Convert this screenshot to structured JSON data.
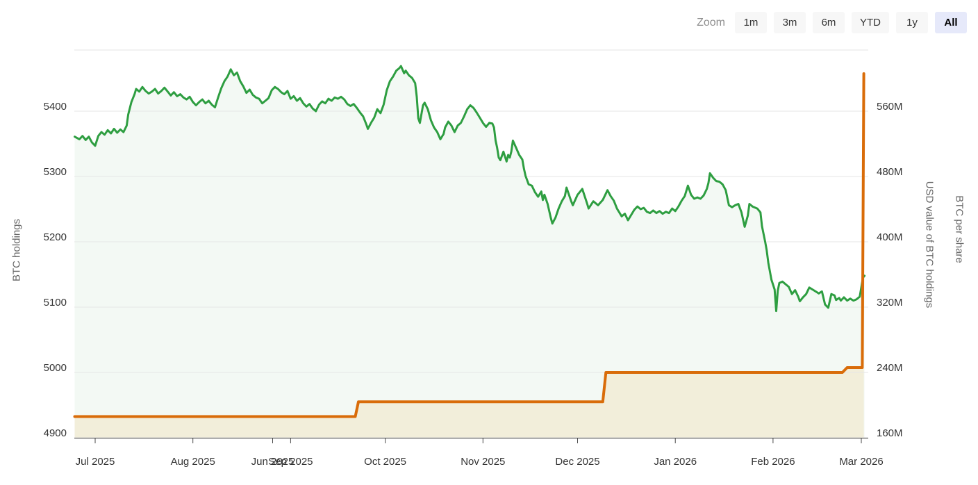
{
  "toolbar": {
    "zoom_label": "Zoom",
    "buttons": [
      {
        "id": "1m",
        "label": "1m",
        "selected": false
      },
      {
        "id": "3m",
        "label": "3m",
        "selected": false
      },
      {
        "id": "6m",
        "label": "6m",
        "selected": false
      },
      {
        "id": "ytd",
        "label": "YTD",
        "selected": false
      },
      {
        "id": "1y",
        "label": "1y",
        "selected": false
      },
      {
        "id": "all",
        "label": "All",
        "selected": true
      }
    ]
  },
  "chart_data": {
    "type": "line",
    "title": "",
    "legend": "none",
    "grid": true,
    "background": "#ffffff",
    "x_unit": "days since 2025-07-01",
    "x_range": [
      -6.6,
      245.2
    ],
    "x_ticks": [
      {
        "day": 0,
        "label": "Jul 2025"
      },
      {
        "day": 31,
        "label": "Aug 2025"
      },
      {
        "day": 56.3,
        "label": "Jun 2025"
      },
      {
        "day": 62,
        "label": "Sep 2025"
      },
      {
        "day": 92,
        "label": "Oct 2025"
      },
      {
        "day": 123,
        "label": "Nov 2025"
      },
      {
        "day": 153,
        "label": "Dec 2025"
      },
      {
        "day": 184,
        "label": "Jan 2026"
      },
      {
        "day": 215,
        "label": "Feb 2026"
      },
      {
        "day": 243,
        "label": "Mar 2026"
      }
    ],
    "axes": {
      "left": {
        "title": "BTC holdings",
        "tick_values": [
          4900,
          5000,
          5100,
          5200,
          5300,
          5400
        ],
        "tick_labels": [
          "4900",
          "5000",
          "5100",
          "5200",
          "5300",
          "5400"
        ],
        "units_per_gridline": 100
      },
      "right": {
        "title": "USD value of BTC holdings",
        "tick_values": [
          160,
          240,
          320,
          400,
          480,
          560
        ],
        "tick_labels": [
          "160M",
          "240M",
          "320M",
          "400M",
          "480M",
          "560M"
        ],
        "units_per_gridline": 80
      },
      "far_right": {
        "title": "BTC per share",
        "tick_labels": []
      }
    },
    "series": [
      {
        "id": "green",
        "name": "BTC holdings",
        "axis": "left",
        "color": "#2e9e41",
        "fill": "rgba(46,158,65,0.06)",
        "width": 3,
        "points": [
          [
            -6.5,
            5361
          ],
          [
            -5,
            5357
          ],
          [
            -4,
            5362
          ],
          [
            -3,
            5356
          ],
          [
            -2,
            5361
          ],
          [
            -1,
            5352
          ],
          [
            0,
            5347
          ],
          [
            1,
            5362
          ],
          [
            2,
            5368
          ],
          [
            3,
            5364
          ],
          [
            4,
            5371
          ],
          [
            5,
            5366
          ],
          [
            6,
            5373
          ],
          [
            7,
            5367
          ],
          [
            8,
            5372
          ],
          [
            9,
            5368
          ],
          [
            10,
            5378
          ],
          [
            10.5,
            5395
          ],
          [
            11.5,
            5414
          ],
          [
            12.5,
            5426
          ],
          [
            13,
            5434
          ],
          [
            14,
            5430
          ],
          [
            15,
            5437
          ],
          [
            16,
            5431
          ],
          [
            17,
            5427
          ],
          [
            18,
            5430
          ],
          [
            19,
            5434
          ],
          [
            20,
            5427
          ],
          [
            21,
            5431
          ],
          [
            22,
            5436
          ],
          [
            23,
            5430
          ],
          [
            24,
            5424
          ],
          [
            25,
            5429
          ],
          [
            26,
            5423
          ],
          [
            27,
            5426
          ],
          [
            28,
            5421
          ],
          [
            29,
            5418
          ],
          [
            30,
            5422
          ],
          [
            31,
            5414
          ],
          [
            32,
            5409
          ],
          [
            33,
            5414
          ],
          [
            34,
            5418
          ],
          [
            35,
            5412
          ],
          [
            36,
            5416
          ],
          [
            37,
            5410
          ],
          [
            38,
            5406
          ],
          [
            39,
            5421
          ],
          [
            40,
            5435
          ],
          [
            41,
            5446
          ],
          [
            42,
            5453
          ],
          [
            43,
            5464
          ],
          [
            44,
            5455
          ],
          [
            45,
            5459
          ],
          [
            46,
            5446
          ],
          [
            47,
            5438
          ],
          [
            48,
            5428
          ],
          [
            49,
            5433
          ],
          [
            50,
            5425
          ],
          [
            51,
            5421
          ],
          [
            52,
            5419
          ],
          [
            53,
            5412
          ],
          [
            54,
            5416
          ],
          [
            55,
            5420
          ],
          [
            56,
            5432
          ],
          [
            57,
            5437
          ],
          [
            58,
            5434
          ],
          [
            59,
            5429
          ],
          [
            60,
            5426
          ],
          [
            61,
            5431
          ],
          [
            62,
            5419
          ],
          [
            63,
            5423
          ],
          [
            64,
            5416
          ],
          [
            65,
            5420
          ],
          [
            66,
            5412
          ],
          [
            67,
            5407
          ],
          [
            68,
            5411
          ],
          [
            69,
            5404
          ],
          [
            70,
            5400
          ],
          [
            71,
            5410
          ],
          [
            72,
            5415
          ],
          [
            73,
            5412
          ],
          [
            74,
            5419
          ],
          [
            75,
            5416
          ],
          [
            76,
            5421
          ],
          [
            77,
            5419
          ],
          [
            78,
            5422
          ],
          [
            79,
            5418
          ],
          [
            80,
            5411
          ],
          [
            81,
            5408
          ],
          [
            82,
            5411
          ],
          [
            83,
            5405
          ],
          [
            84,
            5398
          ],
          [
            85,
            5392
          ],
          [
            86,
            5380
          ],
          [
            86.5,
            5373
          ],
          [
            87.5,
            5382
          ],
          [
            88.5,
            5390
          ],
          [
            89.5,
            5403
          ],
          [
            90.5,
            5397
          ],
          [
            91.5,
            5410
          ],
          [
            92.5,
            5432
          ],
          [
            93.5,
            5446
          ],
          [
            94.5,
            5453
          ],
          [
            95.5,
            5462
          ],
          [
            96.5,
            5466
          ],
          [
            97,
            5469
          ],
          [
            98,
            5458
          ],
          [
            98.5,
            5462
          ],
          [
            99.5,
            5455
          ],
          [
            100.5,
            5451
          ],
          [
            101.5,
            5443
          ],
          [
            102,
            5422
          ],
          [
            102.5,
            5389
          ],
          [
            103,
            5382
          ],
          [
            104,
            5409
          ],
          [
            104.5,
            5413
          ],
          [
            105.5,
            5403
          ],
          [
            106.5,
            5386
          ],
          [
            107.5,
            5375
          ],
          [
            108.5,
            5368
          ],
          [
            109.5,
            5357
          ],
          [
            110.5,
            5365
          ],
          [
            111,
            5375
          ],
          [
            112,
            5384
          ],
          [
            113,
            5378
          ],
          [
            114,
            5368
          ],
          [
            115,
            5378
          ],
          [
            116,
            5382
          ],
          [
            117,
            5392
          ],
          [
            118,
            5403
          ],
          [
            119,
            5409
          ],
          [
            120,
            5405
          ],
          [
            121,
            5398
          ],
          [
            122,
            5390
          ],
          [
            123,
            5382
          ],
          [
            124,
            5376
          ],
          [
            125,
            5382
          ],
          [
            126,
            5381
          ],
          [
            126.5,
            5375
          ],
          [
            127,
            5355
          ],
          [
            127.5,
            5344
          ],
          [
            128,
            5329
          ],
          [
            128.5,
            5325
          ],
          [
            129.5,
            5338
          ],
          [
            130.5,
            5323
          ],
          [
            131,
            5333
          ],
          [
            131.5,
            5329
          ],
          [
            132,
            5338
          ],
          [
            132.5,
            5355
          ],
          [
            133.5,
            5344
          ],
          [
            134.5,
            5333
          ],
          [
            135.5,
            5326
          ],
          [
            136,
            5312
          ],
          [
            136.5,
            5301
          ],
          [
            137.5,
            5288
          ],
          [
            138.5,
            5286
          ],
          [
            139.5,
            5276
          ],
          [
            140.5,
            5269
          ],
          [
            141.5,
            5277
          ],
          [
            142,
            5264
          ],
          [
            142.5,
            5272
          ],
          [
            143.5,
            5258
          ],
          [
            144.5,
            5237
          ],
          [
            145,
            5228
          ],
          [
            146,
            5237
          ],
          [
            147,
            5251
          ],
          [
            148,
            5262
          ],
          [
            149,
            5270
          ],
          [
            149.5,
            5283
          ],
          [
            151,
            5262
          ],
          [
            151.5,
            5256
          ],
          [
            153,
            5272
          ],
          [
            154.5,
            5281
          ],
          [
            156,
            5259
          ],
          [
            156.5,
            5251
          ],
          [
            158,
            5262
          ],
          [
            159.5,
            5256
          ],
          [
            161,
            5264
          ],
          [
            162.5,
            5279
          ],
          [
            163.5,
            5270
          ],
          [
            164.5,
            5263
          ],
          [
            165.5,
            5251
          ],
          [
            167,
            5239
          ],
          [
            168,
            5243
          ],
          [
            169,
            5233
          ],
          [
            170,
            5241
          ],
          [
            171,
            5249
          ],
          [
            172,
            5254
          ],
          [
            173,
            5250
          ],
          [
            174,
            5252
          ],
          [
            175,
            5246
          ],
          [
            176,
            5244
          ],
          [
            177,
            5248
          ],
          [
            178,
            5244
          ],
          [
            179,
            5247
          ],
          [
            180,
            5243
          ],
          [
            181,
            5246
          ],
          [
            182,
            5244
          ],
          [
            183,
            5251
          ],
          [
            184,
            5247
          ],
          [
            185,
            5254
          ],
          [
            186,
            5263
          ],
          [
            187,
            5270
          ],
          [
            188,
            5286
          ],
          [
            189,
            5272
          ],
          [
            190,
            5266
          ],
          [
            191,
            5268
          ],
          [
            192,
            5266
          ],
          [
            193,
            5271
          ],
          [
            194,
            5281
          ],
          [
            194.5,
            5290
          ],
          [
            195,
            5305
          ],
          [
            196,
            5298
          ],
          [
            197,
            5293
          ],
          [
            198,
            5292
          ],
          [
            199,
            5288
          ],
          [
            200,
            5279
          ],
          [
            201,
            5256
          ],
          [
            202,
            5253
          ],
          [
            203,
            5256
          ],
          [
            204,
            5258
          ],
          [
            205,
            5245
          ],
          [
            206,
            5223
          ],
          [
            207,
            5240
          ],
          [
            207.5,
            5258
          ],
          [
            208.5,
            5254
          ],
          [
            210,
            5251
          ],
          [
            211,
            5245
          ],
          [
            211.5,
            5224
          ],
          [
            212.5,
            5200
          ],
          [
            213,
            5187
          ],
          [
            213.5,
            5168
          ],
          [
            214.5,
            5142
          ],
          [
            215.5,
            5127
          ],
          [
            216,
            5094
          ],
          [
            216.5,
            5125
          ],
          [
            217,
            5137
          ],
          [
            218,
            5139
          ],
          [
            219,
            5135
          ],
          [
            220,
            5131
          ],
          [
            221,
            5120
          ],
          [
            222,
            5126
          ],
          [
            223,
            5116
          ],
          [
            223.5,
            5109
          ],
          [
            224.5,
            5115
          ],
          [
            225.5,
            5120
          ],
          [
            226.5,
            5130
          ],
          [
            227.5,
            5127
          ],
          [
            228.5,
            5124
          ],
          [
            229.5,
            5121
          ],
          [
            230.5,
            5124
          ],
          [
            231.5,
            5104
          ],
          [
            232.5,
            5099
          ],
          [
            233.5,
            5120
          ],
          [
            234.5,
            5118
          ],
          [
            235,
            5111
          ],
          [
            236,
            5114
          ],
          [
            236.5,
            5110
          ],
          [
            237.5,
            5115
          ],
          [
            238.5,
            5110
          ],
          [
            239.5,
            5113
          ],
          [
            240.5,
            5110
          ],
          [
            241.5,
            5112
          ],
          [
            242.5,
            5116
          ],
          [
            243,
            5130
          ],
          [
            243.5,
            5145
          ],
          [
            244,
            5148
          ]
        ]
      },
      {
        "id": "orange",
        "name": "USD value of BTC holdings",
        "axis": "right",
        "color": "#d96c09",
        "fill": "#f2eeda",
        "width": 4,
        "points": [
          [
            -6.5,
            186
          ],
          [
            82.5,
            186
          ],
          [
            83.5,
            204
          ],
          [
            161,
            204
          ],
          [
            162,
            240
          ],
          [
            237,
            240
          ],
          [
            238.5,
            246
          ],
          [
            243.3,
            246
          ],
          [
            243.8,
            606
          ]
        ]
      }
    ]
  }
}
